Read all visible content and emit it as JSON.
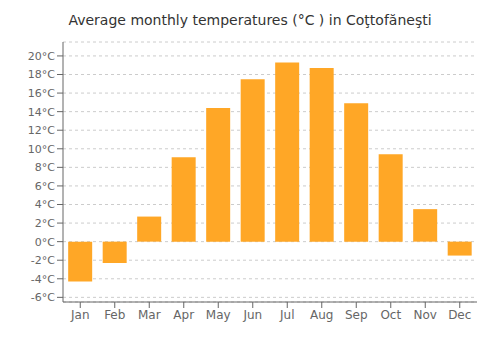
{
  "chart_data": {
    "type": "bar",
    "title": "Average monthly temperatures (°C ) in Coţtofăneşti",
    "categories": [
      "Jan",
      "Feb",
      "Mar",
      "Apr",
      "May",
      "Jun",
      "Jul",
      "Aug",
      "Sep",
      "Oct",
      "Nov",
      "Dec"
    ],
    "values": [
      -4.3,
      -2.3,
      2.7,
      9.1,
      14.4,
      17.5,
      19.3,
      18.7,
      14.9,
      9.4,
      3.5,
      -1.5
    ],
    "color": "#FFA726",
    "ylim": [
      -6.5,
      21.5
    ],
    "yticks": [
      {
        "value": -6,
        "label": "-6°C"
      },
      {
        "value": -4,
        "label": "-4°C"
      },
      {
        "value": -2,
        "label": "-2°C"
      },
      {
        "value": 0,
        "label": "0°C"
      },
      {
        "value": 2,
        "label": "2°C"
      },
      {
        "value": 4,
        "label": "4°C"
      },
      {
        "value": 6,
        "label": "6°C"
      },
      {
        "value": 8,
        "label": "8°C"
      },
      {
        "value": 10,
        "label": "10°C"
      },
      {
        "value": 12,
        "label": "12°C"
      },
      {
        "value": 14,
        "label": "14°C"
      },
      {
        "value": 16,
        "label": "16°C"
      },
      {
        "value": 18,
        "label": "18°C"
      },
      {
        "value": 20,
        "label": "20°C"
      }
    ],
    "grid": true
  }
}
